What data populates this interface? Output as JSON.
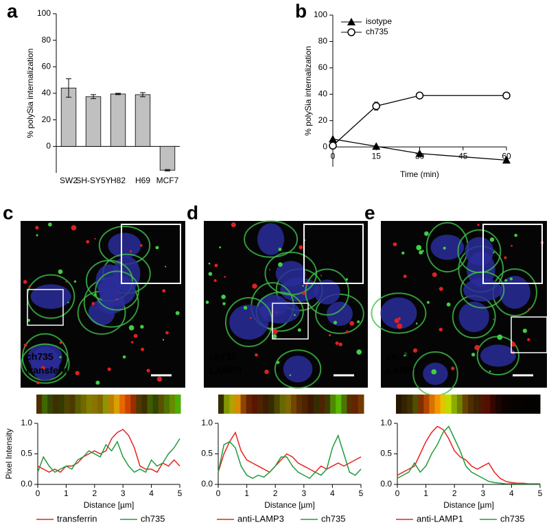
{
  "chart_data": [
    {
      "type": "bar",
      "panel": "a",
      "ylabel": "% polySia internalization",
      "categories": [
        "SW2",
        "SH-SY5Y",
        "H82",
        "H69",
        "MCF7"
      ],
      "values": [
        44,
        37.5,
        39.5,
        39,
        -18
      ],
      "errors": [
        7,
        1.5,
        0.5,
        1.5,
        0.5
      ],
      "color": "#c0c0c0",
      "ylim": [
        -20,
        100
      ],
      "yticks": [
        0,
        20,
        40,
        60,
        80,
        100
      ]
    },
    {
      "type": "line",
      "panel": "b",
      "ylabel": "% polySia internalization",
      "xlabel": "Time (min)",
      "x": [
        0,
        15,
        30,
        60
      ],
      "series": [
        {
          "name": "isotype",
          "color": "#000000",
          "marker": "triangle",
          "values": [
            6,
            0.5,
            -5,
            -10
          ]
        },
        {
          "name": "ch735",
          "color": "#000000",
          "marker": "circle",
          "values": [
            1,
            31,
            39,
            39
          ],
          "errors": [
            1,
            3,
            2,
            1
          ]
        }
      ],
      "xlim": [
        0,
        60
      ],
      "xticks": [
        0,
        15,
        30,
        45,
        60
      ],
      "ylim": [
        -15,
        100
      ],
      "yticks": [
        0,
        20,
        40,
        60,
        80,
        100
      ],
      "legend": "upper left"
    },
    {
      "type": "profile",
      "ylabel": "Pixel Intensity",
      "xlabel": "Distance [µm]",
      "x": [
        0,
        0.2,
        0.4,
        0.6,
        0.8,
        1,
        1.2,
        1.4,
        1.6,
        1.8,
        2,
        2.2,
        2.4,
        2.6,
        2.8,
        3,
        3.2,
        3.4,
        3.6,
        3.8,
        4,
        4.2,
        4.4,
        4.6,
        4.8,
        5
      ],
      "series": [
        {
          "name": "transferrin",
          "color": "#e8201c",
          "values": [
            0.3,
            0.25,
            0.2,
            0.25,
            0.2,
            0.3,
            0.3,
            0.35,
            0.45,
            0.5,
            0.55,
            0.5,
            0.55,
            0.75,
            0.85,
            0.9,
            0.8,
            0.6,
            0.3,
            0.25,
            0.25,
            0.2,
            0.35,
            0.3,
            0.4,
            0.3
          ]
        },
        {
          "name": "ch735",
          "color": "#1e9a3a",
          "values": [
            0.2,
            0.45,
            0.3,
            0.2,
            0.25,
            0.3,
            0.25,
            0.4,
            0.45,
            0.55,
            0.5,
            0.45,
            0.65,
            0.55,
            0.7,
            0.45,
            0.3,
            0.2,
            0.25,
            0.2,
            0.4,
            0.3,
            0.35,
            0.5,
            0.6,
            0.75
          ]
        }
      ],
      "xlim": [
        0,
        5
      ],
      "xticks": [
        0,
        1,
        2,
        3,
        4,
        5
      ],
      "ylim": [
        0,
        1
      ],
      "yticks": [
        {
          "value": 0,
          "label": "0.0"
        },
        {
          "value": 0.5,
          "label": "0.5"
        },
        {
          "value": 1,
          "label": "1.0"
        }
      ],
      "legend": "bottom"
    },
    {
      "type": "profile",
      "xlabel": "Distance [µm]",
      "x": [
        0,
        0.2,
        0.4,
        0.6,
        0.8,
        1,
        1.2,
        1.4,
        1.6,
        1.8,
        2,
        2.2,
        2.4,
        2.6,
        2.8,
        3,
        3.2,
        3.4,
        3.6,
        3.8,
        4,
        4.2,
        4.4,
        4.6,
        4.8,
        5
      ],
      "series": [
        {
          "name": "anti-LAMP3",
          "color": "#e8201c",
          "values": [
            0.2,
            0.5,
            0.7,
            0.85,
            0.55,
            0.4,
            0.35,
            0.3,
            0.25,
            0.2,
            0.3,
            0.4,
            0.5,
            0.45,
            0.35,
            0.3,
            0.25,
            0.2,
            0.3,
            0.25,
            0.3,
            0.35,
            0.3,
            0.35,
            0.4,
            0.45
          ]
        },
        {
          "name": "ch735",
          "color": "#1e9a3a",
          "values": [
            0.2,
            0.65,
            0.7,
            0.6,
            0.3,
            0.15,
            0.1,
            0.15,
            0.12,
            0.2,
            0.3,
            0.45,
            0.45,
            0.3,
            0.2,
            0.15,
            0.1,
            0.2,
            0.15,
            0.25,
            0.6,
            0.8,
            0.5,
            0.2,
            0.15,
            0.25
          ]
        }
      ],
      "xlim": [
        0,
        5
      ],
      "xticks": [
        0,
        1,
        2,
        3,
        4,
        5
      ],
      "ylim": [
        0,
        1
      ],
      "yticks": [
        {
          "value": 0,
          "label": "0.0"
        },
        {
          "value": 0.5,
          "label": "0.5"
        },
        {
          "value": 1,
          "label": "1.0"
        }
      ],
      "legend": "bottom"
    },
    {
      "type": "profile",
      "xlabel": "Distance [µm]",
      "x": [
        0,
        0.2,
        0.4,
        0.6,
        0.8,
        1,
        1.2,
        1.4,
        1.6,
        1.8,
        2,
        2.2,
        2.4,
        2.6,
        2.8,
        3,
        3.2,
        3.4,
        3.6,
        3.8,
        4,
        4.2,
        4.4,
        4.6,
        4.8,
        5
      ],
      "series": [
        {
          "name": "anti-LAMP1",
          "color": "#e8201c",
          "values": [
            0.15,
            0.2,
            0.25,
            0.3,
            0.5,
            0.7,
            0.85,
            0.95,
            0.9,
            0.75,
            0.55,
            0.45,
            0.4,
            0.3,
            0.25,
            0.3,
            0.35,
            0.2,
            0.1,
            0.05,
            0.03,
            0.02,
            0.02,
            0.01,
            0.01,
            0.01
          ]
        },
        {
          "name": "ch735",
          "color": "#1e9a3a",
          "values": [
            0.1,
            0.15,
            0.2,
            0.35,
            0.2,
            0.3,
            0.5,
            0.65,
            0.85,
            0.95,
            0.75,
            0.55,
            0.3,
            0.2,
            0.15,
            0.1,
            0.05,
            0.03,
            0.02,
            0.01,
            0.01,
            0.01,
            0.01,
            0.01,
            0.01,
            0.01
          ]
        }
      ],
      "xlim": [
        0,
        5
      ],
      "xticks": [
        0,
        1,
        2,
        3,
        4,
        5
      ],
      "ylim": [
        0,
        1
      ],
      "yticks": [
        {
          "value": 0,
          "label": "0.0"
        },
        {
          "value": 0.5,
          "label": "0.5"
        },
        {
          "value": 1,
          "label": "1.0"
        }
      ],
      "legend": "bottom"
    }
  ],
  "images": [
    {
      "panel": "c",
      "channels": [
        "ch735",
        "transferrin"
      ]
    },
    {
      "panel": "d",
      "channels": [
        "ch735",
        "LAMP3"
      ]
    },
    {
      "panel": "e",
      "channels": [
        "ch735",
        "LAMP1"
      ]
    }
  ]
}
